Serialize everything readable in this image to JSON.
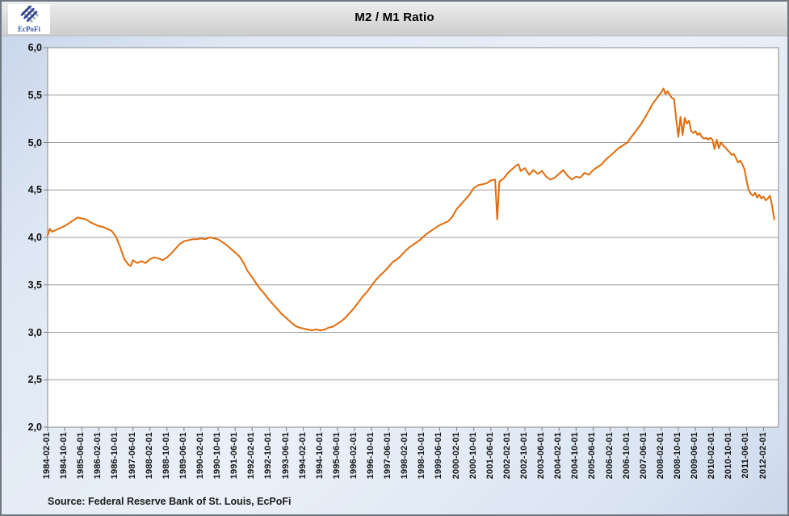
{
  "logo": {
    "text": "EcPoFi",
    "brand_color": "#3353a4",
    "mark_navy": "#2b3f8f",
    "mark_gray": "#a7aec2"
  },
  "chart": {
    "title": "M2 / M1 Ratio"
  },
  "source": {
    "text": "Source: Federal Reserve Bank of St. Louis, EcPoFi"
  },
  "colors": {
    "line": "#E26B0A",
    "grid": "#9b9b9b",
    "plot_border": "#8a8a8a",
    "tick": "#808080",
    "plot_bg": "#ffffff",
    "page_bg": "#dce6f2",
    "titlebar_bg": "#d9d9d9"
  },
  "chart_data": {
    "type": "line",
    "title": "M2 / M1 Ratio",
    "xlabel": "",
    "ylabel": "",
    "legend": "none",
    "grid": "horizontal",
    "ylim": [
      2.0,
      6.0
    ],
    "ytick_step": 0.5,
    "ytick_labels": [
      "6,0",
      "5,5",
      "5,0",
      "4,5",
      "4,0",
      "3,5",
      "3,0",
      "2,5",
      "2,0"
    ],
    "x_start": "1984-02",
    "x_end": "2012-09",
    "xtick_labels": [
      "1984-02-01",
      "1984-10-01",
      "1985-06-01",
      "1986-02-01",
      "1986-10-01",
      "1987-06-01",
      "1988-02-01",
      "1988-10-01",
      "1989-06-01",
      "1990-02-01",
      "1990-10-01",
      "1991-06-01",
      "1992-02-01",
      "1992-10-01",
      "1993-06-01",
      "1994-02-01",
      "1994-10-01",
      "1995-06-01",
      "1996-02-01",
      "1996-10-01",
      "1997-06-01",
      "1998-02-01",
      "1998-10-01",
      "1999-06-01",
      "2000-02-01",
      "2000-10-01",
      "2001-06-01",
      "2002-02-01",
      "2002-10-01",
      "2003-06-01",
      "2004-02-01",
      "2004-10-01",
      "2005-06-01",
      "2006-02-01",
      "2006-10-01",
      "2007-06-01",
      "2008-02-01",
      "2008-10-01",
      "2009-06-01",
      "2010-02-01",
      "2010-10-01",
      "2011-06-01",
      "2012-02-01"
    ],
    "series": [
      {
        "name": "M2 / M1 Ratio",
        "points": [
          [
            "1984-02",
            4.02
          ],
          [
            "1984-03",
            4.09
          ],
          [
            "1984-04",
            4.06
          ],
          [
            "1984-06",
            4.08
          ],
          [
            "1984-08",
            4.1
          ],
          [
            "1984-10",
            4.12
          ],
          [
            "1984-12",
            4.15
          ],
          [
            "1985-02",
            4.18
          ],
          [
            "1985-04",
            4.21
          ],
          [
            "1985-06",
            4.2
          ],
          [
            "1985-08",
            4.19
          ],
          [
            "1985-10",
            4.16
          ],
          [
            "1985-12",
            4.14
          ],
          [
            "1986-02",
            4.12
          ],
          [
            "1986-04",
            4.11
          ],
          [
            "1986-06",
            4.09
          ],
          [
            "1986-08",
            4.07
          ],
          [
            "1986-10",
            4.01
          ],
          [
            "1986-12",
            3.9
          ],
          [
            "1987-02",
            3.77
          ],
          [
            "1987-04",
            3.71
          ],
          [
            "1987-05",
            3.7
          ],
          [
            "1987-06",
            3.76
          ],
          [
            "1987-08",
            3.73
          ],
          [
            "1987-10",
            3.75
          ],
          [
            "1987-12",
            3.73
          ],
          [
            "1988-02",
            3.77
          ],
          [
            "1988-04",
            3.79
          ],
          [
            "1988-06",
            3.78
          ],
          [
            "1988-08",
            3.76
          ],
          [
            "1988-10",
            3.79
          ],
          [
            "1988-12",
            3.83
          ],
          [
            "1989-02",
            3.88
          ],
          [
            "1989-04",
            3.93
          ],
          [
            "1989-06",
            3.96
          ],
          [
            "1989-08",
            3.97
          ],
          [
            "1989-10",
            3.98
          ],
          [
            "1989-12",
            3.98
          ],
          [
            "1990-02",
            3.99
          ],
          [
            "1990-04",
            3.98
          ],
          [
            "1990-06",
            4.0
          ],
          [
            "1990-08",
            3.99
          ],
          [
            "1990-10",
            3.98
          ],
          [
            "1990-12",
            3.95
          ],
          [
            "1991-02",
            3.92
          ],
          [
            "1991-04",
            3.88
          ],
          [
            "1991-06",
            3.84
          ],
          [
            "1991-08",
            3.8
          ],
          [
            "1991-10",
            3.73
          ],
          [
            "1991-12",
            3.64
          ],
          [
            "1992-02",
            3.58
          ],
          [
            "1992-04",
            3.51
          ],
          [
            "1992-06",
            3.45
          ],
          [
            "1992-08",
            3.4
          ],
          [
            "1992-10",
            3.34
          ],
          [
            "1992-12",
            3.29
          ],
          [
            "1993-02",
            3.24
          ],
          [
            "1993-04",
            3.19
          ],
          [
            "1993-06",
            3.15
          ],
          [
            "1993-08",
            3.11
          ],
          [
            "1993-10",
            3.07
          ],
          [
            "1993-12",
            3.05
          ],
          [
            "1994-02",
            3.04
          ],
          [
            "1994-04",
            3.03
          ],
          [
            "1994-06",
            3.02
          ],
          [
            "1994-08",
            3.03
          ],
          [
            "1994-10",
            3.02
          ],
          [
            "1994-12",
            3.03
          ],
          [
            "1995-02",
            3.05
          ],
          [
            "1995-04",
            3.06
          ],
          [
            "1995-06",
            3.09
          ],
          [
            "1995-08",
            3.12
          ],
          [
            "1995-10",
            3.16
          ],
          [
            "1995-12",
            3.21
          ],
          [
            "1996-02",
            3.26
          ],
          [
            "1996-04",
            3.32
          ],
          [
            "1996-06",
            3.38
          ],
          [
            "1996-08",
            3.43
          ],
          [
            "1996-10",
            3.49
          ],
          [
            "1996-12",
            3.55
          ],
          [
            "1997-02",
            3.6
          ],
          [
            "1997-04",
            3.64
          ],
          [
            "1997-06",
            3.69
          ],
          [
            "1997-08",
            3.74
          ],
          [
            "1997-10",
            3.77
          ],
          [
            "1997-12",
            3.81
          ],
          [
            "1998-02",
            3.86
          ],
          [
            "1998-04",
            3.9
          ],
          [
            "1998-06",
            3.93
          ],
          [
            "1998-08",
            3.96
          ],
          [
            "1998-10",
            4.0
          ],
          [
            "1998-12",
            4.04
          ],
          [
            "1999-02",
            4.07
          ],
          [
            "1999-04",
            4.1
          ],
          [
            "1999-06",
            4.13
          ],
          [
            "1999-08",
            4.15
          ],
          [
            "1999-10",
            4.17
          ],
          [
            "1999-12",
            4.22
          ],
          [
            "2000-02",
            4.3
          ],
          [
            "2000-04",
            4.35
          ],
          [
            "2000-06",
            4.4
          ],
          [
            "2000-08",
            4.45
          ],
          [
            "2000-10",
            4.52
          ],
          [
            "2000-12",
            4.55
          ],
          [
            "2001-02",
            4.56
          ],
          [
            "2001-04",
            4.57
          ],
          [
            "2001-06",
            4.6
          ],
          [
            "2001-08",
            4.61
          ],
          [
            "2001-09",
            4.19
          ],
          [
            "2001-10",
            4.59
          ],
          [
            "2001-12",
            4.62
          ],
          [
            "2002-02",
            4.68
          ],
          [
            "2002-04",
            4.72
          ],
          [
            "2002-06",
            4.76
          ],
          [
            "2002-07",
            4.77
          ],
          [
            "2002-08",
            4.7
          ],
          [
            "2002-10",
            4.73
          ],
          [
            "2002-12",
            4.66
          ],
          [
            "2003-02",
            4.71
          ],
          [
            "2003-04",
            4.67
          ],
          [
            "2003-06",
            4.7
          ],
          [
            "2003-08",
            4.64
          ],
          [
            "2003-10",
            4.61
          ],
          [
            "2003-12",
            4.63
          ],
          [
            "2004-02",
            4.67
          ],
          [
            "2004-04",
            4.71
          ],
          [
            "2004-06",
            4.65
          ],
          [
            "2004-08",
            4.61
          ],
          [
            "2004-10",
            4.64
          ],
          [
            "2004-12",
            4.63
          ],
          [
            "2005-02",
            4.68
          ],
          [
            "2005-04",
            4.66
          ],
          [
            "2005-06",
            4.71
          ],
          [
            "2005-08",
            4.74
          ],
          [
            "2005-10",
            4.77
          ],
          [
            "2005-12",
            4.82
          ],
          [
            "2006-02",
            4.86
          ],
          [
            "2006-04",
            4.9
          ],
          [
            "2006-06",
            4.94
          ],
          [
            "2006-08",
            4.97
          ],
          [
            "2006-10",
            5.0
          ],
          [
            "2006-12",
            5.06
          ],
          [
            "2007-02",
            5.12
          ],
          [
            "2007-04",
            5.18
          ],
          [
            "2007-06",
            5.25
          ],
          [
            "2007-08",
            5.33
          ],
          [
            "2007-10",
            5.41
          ],
          [
            "2007-12",
            5.47
          ],
          [
            "2008-01",
            5.5
          ],
          [
            "2008-02",
            5.53
          ],
          [
            "2008-03",
            5.57
          ],
          [
            "2008-04",
            5.51
          ],
          [
            "2008-05",
            5.54
          ],
          [
            "2008-06",
            5.5
          ],
          [
            "2008-07",
            5.47
          ],
          [
            "2008-08",
            5.46
          ],
          [
            "2008-09",
            5.24
          ],
          [
            "2008-10",
            5.06
          ],
          [
            "2008-11",
            5.27
          ],
          [
            "2008-12",
            5.08
          ],
          [
            "2009-01",
            5.26
          ],
          [
            "2009-02",
            5.2
          ],
          [
            "2009-03",
            5.23
          ],
          [
            "2009-04",
            5.12
          ],
          [
            "2009-05",
            5.1
          ],
          [
            "2009-06",
            5.12
          ],
          [
            "2009-07",
            5.08
          ],
          [
            "2009-08",
            5.1
          ],
          [
            "2009-09",
            5.06
          ],
          [
            "2009-10",
            5.04
          ],
          [
            "2009-11",
            5.05
          ],
          [
            "2009-12",
            5.03
          ],
          [
            "2010-01",
            5.05
          ],
          [
            "2010-02",
            5.03
          ],
          [
            "2010-03",
            4.93
          ],
          [
            "2010-04",
            5.03
          ],
          [
            "2010-05",
            4.94
          ],
          [
            "2010-06",
            5.0
          ],
          [
            "2010-07",
            4.97
          ],
          [
            "2010-08",
            4.95
          ],
          [
            "2010-09",
            4.92
          ],
          [
            "2010-10",
            4.9
          ],
          [
            "2010-11",
            4.87
          ],
          [
            "2010-12",
            4.88
          ],
          [
            "2011-01",
            4.84
          ],
          [
            "2011-02",
            4.79
          ],
          [
            "2011-03",
            4.81
          ],
          [
            "2011-04",
            4.77
          ],
          [
            "2011-05",
            4.72
          ],
          [
            "2011-06",
            4.6
          ],
          [
            "2011-07",
            4.5
          ],
          [
            "2011-08",
            4.46
          ],
          [
            "2011-09",
            4.44
          ],
          [
            "2011-10",
            4.47
          ],
          [
            "2011-11",
            4.42
          ],
          [
            "2011-12",
            4.45
          ],
          [
            "2012-01",
            4.41
          ],
          [
            "2012-02",
            4.43
          ],
          [
            "2012-03",
            4.39
          ],
          [
            "2012-04",
            4.41
          ],
          [
            "2012-05",
            4.44
          ],
          [
            "2012-06",
            4.33
          ],
          [
            "2012-07",
            4.19
          ]
        ]
      }
    ]
  }
}
